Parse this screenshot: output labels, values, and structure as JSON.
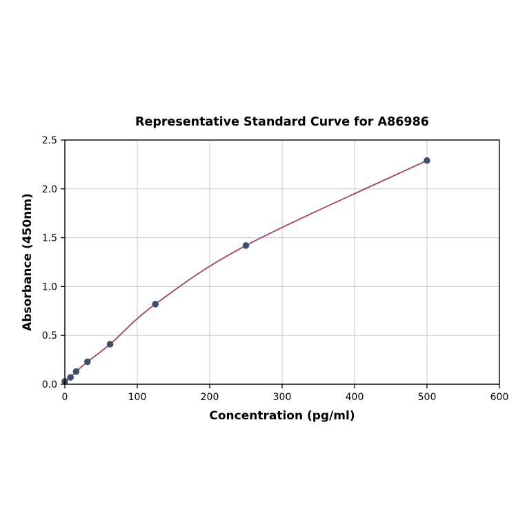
{
  "chart_data": {
    "type": "line",
    "title": "Representative Standard Curve for A86986",
    "xlabel": "Concentration (pg/ml)",
    "ylabel": "Absorbance (450nm)",
    "xlim": [
      0,
      600
    ],
    "ylim": [
      0,
      2.5
    ],
    "x_ticks": [
      0,
      100,
      200,
      300,
      400,
      500,
      600
    ],
    "x_tick_labels": [
      "0",
      "100",
      "200",
      "300",
      "400",
      "500",
      "600"
    ],
    "y_ticks": [
      0.0,
      0.5,
      1.0,
      1.5,
      2.0,
      2.5
    ],
    "y_tick_labels": [
      "0.0",
      "0.5",
      "1.0",
      "1.5",
      "2.0",
      "2.5"
    ],
    "grid": true,
    "legend": "none",
    "x": [
      0,
      7.8,
      15.6,
      31.25,
      62.5,
      125,
      250,
      500
    ],
    "y": [
      0.03,
      0.07,
      0.13,
      0.23,
      0.41,
      0.82,
      1.42,
      2.29
    ],
    "series_name": "Standard Curve",
    "colors": {
      "curve": "#a2455c",
      "point": "#3e4f6b",
      "grid": "#c9c9c9",
      "axis": "#000000",
      "background": "#ffffff"
    }
  }
}
